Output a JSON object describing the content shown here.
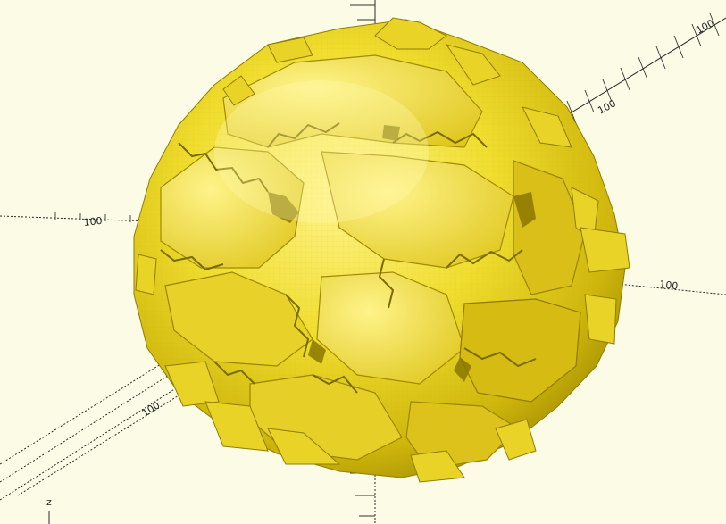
{
  "app": {
    "viewport": "3d-preview",
    "background_color": "#fbfbe6"
  },
  "axes": {
    "axis_label_z": "z",
    "scale_label_left": "100",
    "scale_label_right": "100",
    "scale_label_upper_right": "100",
    "scale_label_lower_left": "100",
    "scale_label_front": "100"
  },
  "model": {
    "name": "voronoi-sphere",
    "color": "#f2e23a",
    "shadow_color": "#a69200",
    "highlight_color": "#fff28a"
  }
}
